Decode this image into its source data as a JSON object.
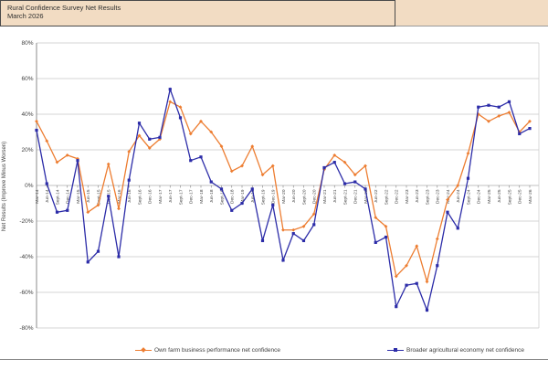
{
  "header": {
    "title": "Rural Confidence Survey Net Results",
    "subtitle": "March 2026"
  },
  "chart_data": {
    "type": "line",
    "title": "Rural Confidence Survey Net Results",
    "subtitle": "March 2026",
    "xlabel": "",
    "ylabel": "Net Results (Improve Minus Worsen)",
    "ylim": [
      -80,
      80
    ],
    "ytick_step": 20,
    "ytick_labels": [
      "80%",
      "60%",
      "40%",
      "20%",
      "0%",
      "-20%",
      "-40%",
      "-60%",
      "-80%"
    ],
    "grid": true,
    "legend_position": "bottom",
    "categories": [
      "Mar-14",
      "Jun-14",
      "Sept-14",
      "Dec-14",
      "Mar-15",
      "Jun-15",
      "Sept-15",
      "Dec-15",
      "Mar-16",
      "Jun-16",
      "Sept-16",
      "Dec-16",
      "Mar-17",
      "Jun-17",
      "Sept-17",
      "Dec-17",
      "Mar-18",
      "Jun-18",
      "Sept-18",
      "Dec-18",
      "Mar-19",
      "Jun-19",
      "Sept-19",
      "Dec-19",
      "Mar-20",
      "Jun-20",
      "Sept-20",
      "Dec-20",
      "Mar-21",
      "Jun-21",
      "Sept-21",
      "Dec-21",
      "Mar-22",
      "Jun-22",
      "Sept-22",
      "Dec-22",
      "Mar-23",
      "Jun-23",
      "Sept-23",
      "Dec-23",
      "Mar-24",
      "Jun-24",
      "Sept-24",
      "Dec-24",
      "Mar-25",
      "Jun-25",
      "Sept-25",
      "Dec-25",
      "Mar-26"
    ],
    "series": [
      {
        "name": "Own farm business performance net confidence",
        "color": "#ED7D31",
        "marker": "diamond",
        "values": [
          36,
          25,
          13,
          17,
          15,
          -15,
          -11,
          12,
          -13,
          19,
          28,
          21,
          26,
          47,
          44,
          29,
          36,
          30,
          22,
          8,
          11,
          22,
          6,
          11,
          -25,
          -25,
          -23,
          -16,
          9,
          17,
          13,
          6,
          11,
          -18,
          -23,
          -51,
          -45,
          -34,
          -54,
          -30,
          -8,
          0,
          18,
          40,
          36,
          39,
          41,
          30,
          36
        ]
      },
      {
        "name": "Broader agricultural economy net confidence",
        "color": "#2C2CA8",
        "marker": "square",
        "values": [
          31,
          1,
          -15,
          -14,
          14,
          -43,
          -37,
          -6,
          -40,
          3,
          35,
          26,
          27,
          54,
          38,
          14,
          16,
          2,
          -2,
          -14,
          -10,
          -2,
          -31,
          -11,
          -42,
          -27,
          -31,
          -22,
          10,
          13,
          1,
          2,
          -2,
          -32,
          -29,
          -68,
          -56,
          -55,
          -70,
          -45,
          -15,
          -24,
          4,
          44,
          45,
          44,
          47,
          29,
          32
        ]
      }
    ]
  },
  "colors": {
    "header_bg": "#F2DCC3",
    "grid": "#C9C9C9",
    "axis": "#7F7F7F",
    "text": "#3F3F3F",
    "series_orange": "#ED7D31",
    "series_blue": "#2C2CA8"
  }
}
